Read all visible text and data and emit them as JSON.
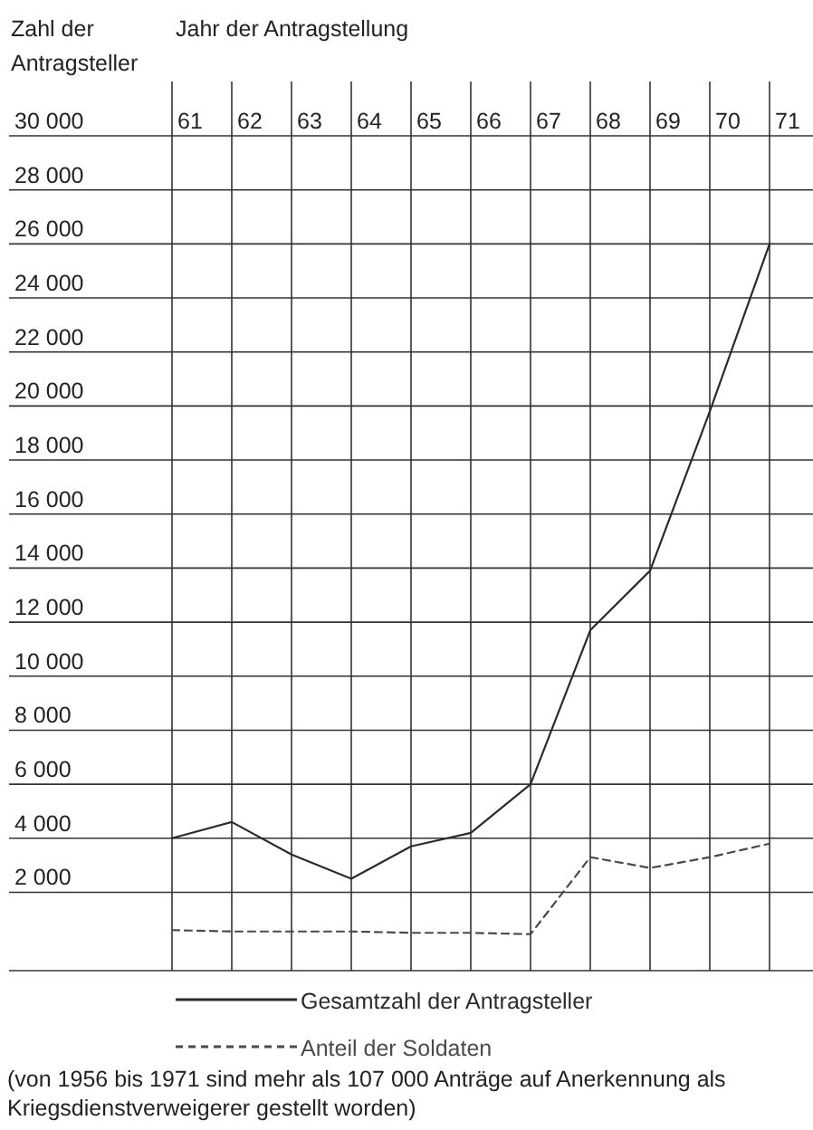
{
  "chart_data": {
    "type": "line",
    "xlabel": "Jahr der Antragstellung",
    "ylabel": "Zahl der Antragsteller",
    "categories": [
      "61",
      "62",
      "63",
      "64",
      "65",
      "66",
      "67",
      "68",
      "69",
      "70",
      "71"
    ],
    "series": [
      {
        "name": "Gesamtzahl der Antragsteller",
        "color": "#2b2b2b",
        "line_style": "solid",
        "values": [
          4000,
          4600,
          3400,
          2500,
          3700,
          4200,
          6000,
          11700,
          13900,
          19800,
          26000
        ]
      },
      {
        "name": "Anteil der Soldaten",
        "color": "#4a4a4a",
        "line_style": "dashed",
        "values": [
          600,
          550,
          550,
          550,
          500,
          500,
          450,
          3300,
          2900,
          3300,
          3800
        ]
      }
    ],
    "ylim": [
      -900,
      30000
    ],
    "yticks": [
      {
        "value": 2000,
        "label": "2 000"
      },
      {
        "value": 4000,
        "label": "4 000"
      },
      {
        "value": 6000,
        "label": "6 000"
      },
      {
        "value": 8000,
        "label": "8 000"
      },
      {
        "value": 10000,
        "label": "10 000"
      },
      {
        "value": 12000,
        "label": "12 000"
      },
      {
        "value": 14000,
        "label": "14 000"
      },
      {
        "value": 16000,
        "label": "16 000"
      },
      {
        "value": 18000,
        "label": "18 000"
      },
      {
        "value": 20000,
        "label": "20 000"
      },
      {
        "value": 22000,
        "label": "22 000"
      },
      {
        "value": 24000,
        "label": "24 000"
      },
      {
        "value": 26000,
        "label": "26 000"
      },
      {
        "value": 28000,
        "label": "28 000"
      },
      {
        "value": 30000,
        "label": "30 000"
      }
    ],
    "grid": true,
    "legend": "bottom",
    "annotations": [
      "(von 1956 bis 1971 sind mehr als 107 000 Anträge auf Anerkennung als Kriegsdienstverweigerer gestellt worden)"
    ]
  }
}
